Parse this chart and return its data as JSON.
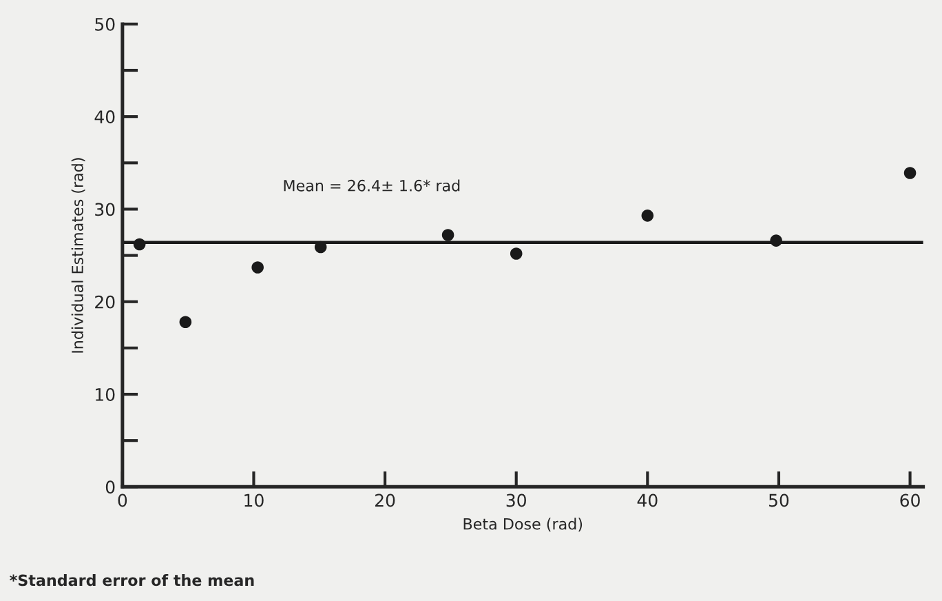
{
  "chart_data": {
    "type": "scatter",
    "xlabel": "Beta Dose (rad)",
    "ylabel": "Individual Estimates (rad)",
    "x": [
      1.3,
      4.8,
      10.3,
      15.1,
      24.8,
      30.0,
      40.0,
      49.8,
      60.0
    ],
    "values": [
      26.2,
      17.8,
      23.7,
      25.9,
      27.2,
      25.2,
      29.3,
      26.6,
      33.9
    ],
    "color": "#1a1a1a",
    "marker": "circle",
    "xlim": [
      0,
      61
    ],
    "ylim": [
      0,
      50
    ],
    "xticks": [
      0,
      10,
      20,
      30,
      40,
      50,
      60
    ],
    "yticks": [
      0,
      {
        "value": 5,
        "label": null
      },
      10,
      {
        "value": 15,
        "label": null
      },
      20,
      {
        "value": 25,
        "label": null
      },
      30,
      {
        "value": 35,
        "label": null
      },
      40,
      {
        "value": 45,
        "label": null
      },
      50
    ],
    "ref_lines": [
      {
        "axis": "y",
        "value": 26.4,
        "label": "Mean = 26.4± 1.6* rad",
        "color": "#1a1a1a"
      }
    ],
    "annotations": [
      "*Standard error of the mean"
    ],
    "grid": false,
    "legend": false
  }
}
